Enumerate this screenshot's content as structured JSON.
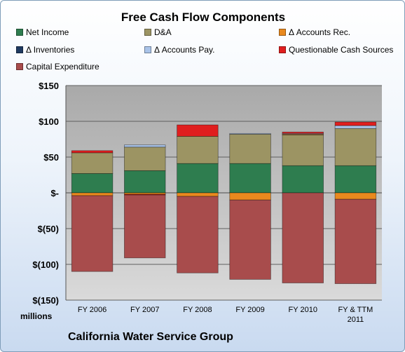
{
  "chart_data": {
    "type": "bar",
    "stacked": true,
    "title": "Free Cash Flow Components",
    "units_label": "millions",
    "footer": "California Water Service Group",
    "categories": [
      "FY 2006",
      "FY 2007",
      "FY 2008",
      "FY 2009",
      "FY 2010",
      "FY & TTM 2011"
    ],
    "ylim": [
      -150,
      150
    ],
    "y_ticks": [
      150,
      100,
      50,
      0,
      -50,
      -100,
      -150
    ],
    "y_tick_labels": [
      "$150",
      "$100",
      "$50",
      "$-",
      "$(50)",
      "$(100)",
      "$(150)"
    ],
    "grid": true,
    "legend_position": "top",
    "series": [
      {
        "name": "Net Income",
        "color": "#2e7d4f",
        "values": [
          27,
          31,
          41,
          41,
          38,
          38
        ]
      },
      {
        "name": "D&A",
        "color": "#9c9463",
        "values": [
          29,
          33,
          38,
          41,
          43,
          52
        ]
      },
      {
        "name": "Δ Accounts Rec.",
        "color": "#e9891e",
        "values": [
          -4,
          -2,
          -5,
          -10,
          1,
          -9
        ]
      },
      {
        "name": "Δ Inventories",
        "color": "#1f3a60",
        "values": [
          0,
          0,
          0,
          0,
          0,
          0
        ]
      },
      {
        "name": "Δ Accounts Pay.",
        "color": "#a9c3e8",
        "values": [
          0,
          3,
          0,
          1,
          1,
          4
        ]
      },
      {
        "name": "Questionable Cash Sources",
        "color": "#e01e1e",
        "values": [
          3,
          -1,
          16,
          0,
          2,
          5
        ]
      },
      {
        "name": "Capital Expenditure",
        "color": "#a84c4c",
        "values": [
          -106,
          -88,
          -107,
          -111,
          -126,
          -118
        ]
      }
    ]
  }
}
